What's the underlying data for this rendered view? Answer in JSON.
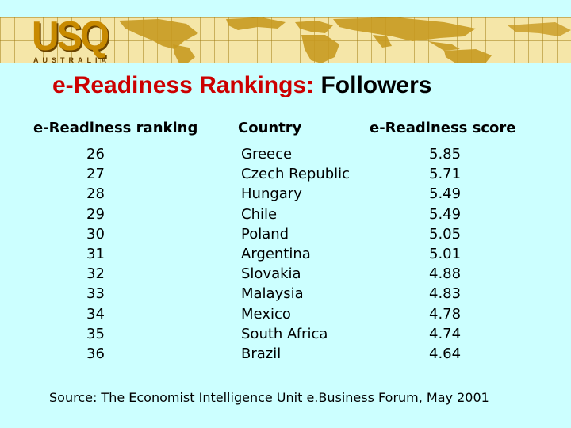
{
  "logo": {
    "main": "USQ",
    "sub": "AUSTRALIA"
  },
  "title": {
    "part1": "e-Readiness Rankings:",
    "part2": "Followers"
  },
  "table": {
    "headers": {
      "ranking": "e-Readiness ranking",
      "country": "Country",
      "score": "e-Readiness score"
    },
    "rows": [
      {
        "rank": "26",
        "country": "Greece",
        "score": "5.85"
      },
      {
        "rank": "27",
        "country": "Czech Republic",
        "score": "5.71"
      },
      {
        "rank": "28",
        "country": "Hungary",
        "score": "5.49"
      },
      {
        "rank": "29",
        "country": "Chile",
        "score": "5.49"
      },
      {
        "rank": "30",
        "country": "Poland",
        "score": "5.05"
      },
      {
        "rank": "31",
        "country": "Argentina",
        "score": "5.01"
      },
      {
        "rank": "32",
        "country": "Slovakia",
        "score": "4.88"
      },
      {
        "rank": "33",
        "country": "Malaysia",
        "score": "4.83"
      },
      {
        "rank": "34",
        "country": "Mexico",
        "score": "4.78"
      },
      {
        "rank": "35",
        "country": "South Africa",
        "score": "4.74"
      },
      {
        "rank": "36",
        "country": "Brazil",
        "score": "4.64"
      }
    ]
  },
  "source": "Source:  The Economist Intelligence Unit e.Business Forum, May 2001",
  "colors": {
    "background": "#ccffff",
    "banner": "#f5e6a8",
    "map": "#c89a20",
    "title_accent": "#cc0000",
    "logo": "#c88a00"
  }
}
